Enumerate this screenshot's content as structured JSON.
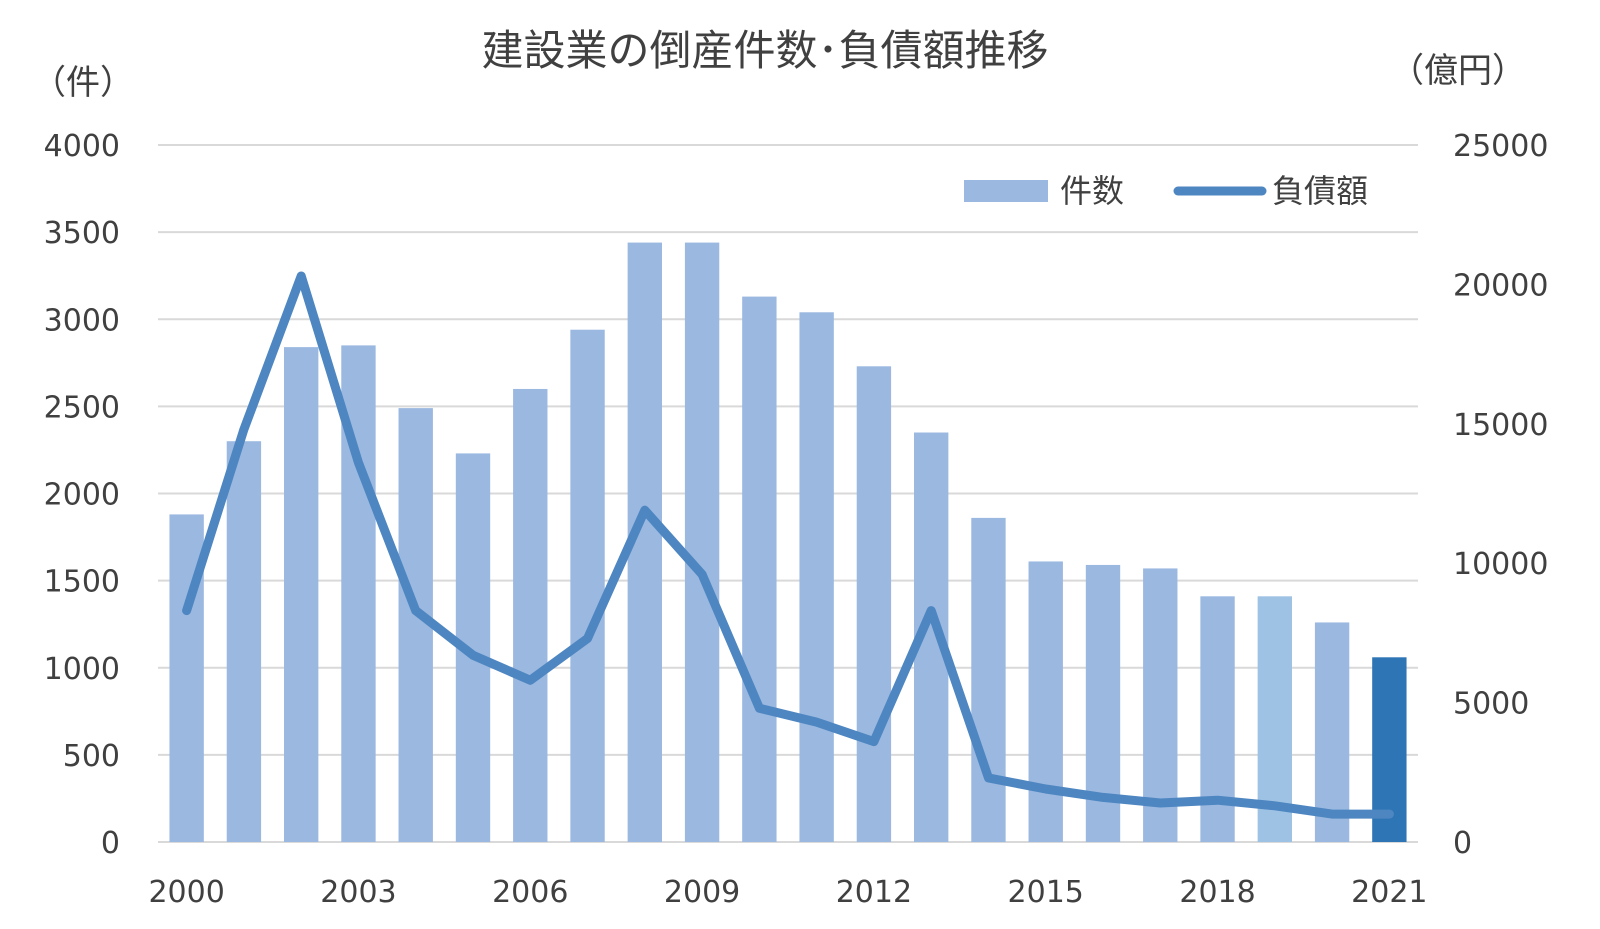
{
  "chart_data": {
    "type": "bar",
    "title": "建設業の倒産件数･負債額推移",
    "y_left_unit": "（件）",
    "y_right_unit": "（億円）",
    "x": [
      2000,
      2001,
      2002,
      2003,
      2004,
      2005,
      2006,
      2007,
      2008,
      2009,
      2010,
      2011,
      2012,
      2013,
      2014,
      2015,
      2016,
      2017,
      2018,
      2019,
      2020,
      2021
    ],
    "x_tick_labels": [
      "2000",
      "2003",
      "2006",
      "2009",
      "2012",
      "2015",
      "2018",
      "2021"
    ],
    "y_left_ticks": [
      "0",
      "500",
      "1000",
      "1500",
      "2000",
      "2500",
      "3000",
      "3500",
      "4000"
    ],
    "y_right_ticks": [
      "0",
      "5000",
      "10000",
      "15000",
      "20000",
      "25000"
    ],
    "ylim_left": [
      0,
      4000
    ],
    "ylim_right": [
      0,
      25000
    ],
    "grid": true,
    "legend_position": "top-right",
    "series": [
      {
        "name": "件数",
        "kind": "bar",
        "axis": "left",
        "color": "#9ab8e0",
        "values": [
          1880,
          2300,
          2840,
          2850,
          2490,
          2230,
          2600,
          2940,
          3440,
          3440,
          3130,
          3040,
          2730,
          2350,
          1860,
          1610,
          1590,
          1570,
          1410,
          1410,
          1260,
          1060
        ]
      },
      {
        "name": "負債額",
        "kind": "line",
        "axis": "right",
        "color": "#4e86c1",
        "values": [
          8300,
          14800,
          20300,
          13600,
          8300,
          6700,
          5800,
          7300,
          11900,
          9600,
          4800,
          4300,
          3600,
          8300,
          2300,
          1900,
          1600,
          1400,
          1500,
          1300,
          1000,
          1000
        ]
      }
    ],
    "highlight_bar_colors": {
      "2019": "#9ec2e4",
      "2021": "#2e75b6"
    }
  }
}
